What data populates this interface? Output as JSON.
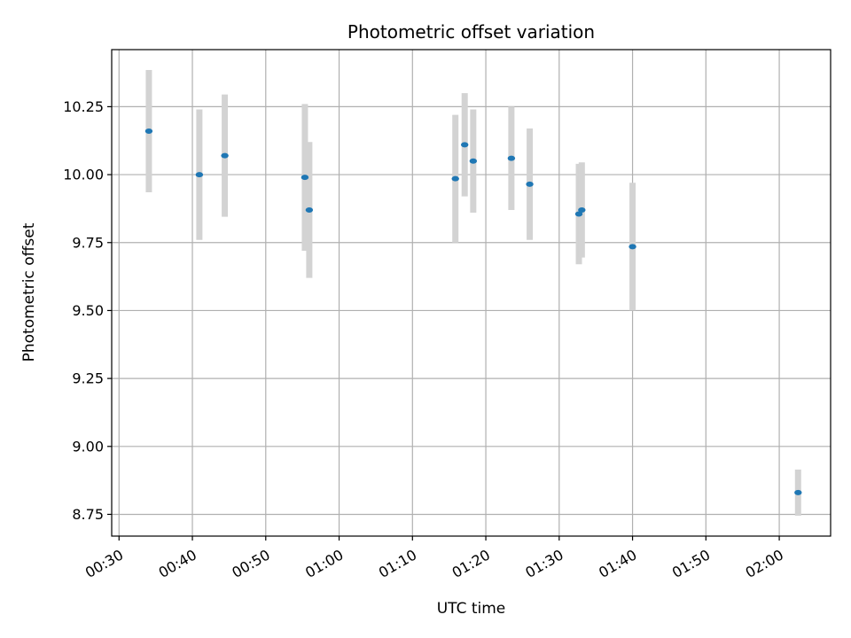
{
  "chart_data": {
    "type": "scatter",
    "title": "Photometric offset variation",
    "xlabel": "UTC time",
    "ylabel": "Photometric offset",
    "grid": true,
    "xlim": [
      "00:29",
      "02:07"
    ],
    "ylim": [
      8.67,
      10.46
    ],
    "x_ticks": [
      "00:30",
      "00:40",
      "00:50",
      "01:00",
      "01:10",
      "01:20",
      "01:30",
      "01:40",
      "01:50",
      "02:00"
    ],
    "y_ticks": [
      "8.75",
      "9.00",
      "9.25",
      "9.50",
      "9.75",
      "10.00",
      "10.25"
    ],
    "colors": {
      "marker": "#1f77b4",
      "error_bar": "#d3d3d3",
      "grid": "#b0b0b0"
    },
    "series": [
      {
        "points": [
          {
            "time": "00:34:04",
            "y": 10.16,
            "yerr": 0.225
          },
          {
            "time": "00:40:57",
            "y": 10.0,
            "yerr": 0.24
          },
          {
            "time": "00:44:25",
            "y": 10.07,
            "yerr": 0.225
          },
          {
            "time": "00:55:20",
            "y": 9.99,
            "yerr": 0.27
          },
          {
            "time": "00:55:56",
            "y": 9.87,
            "yerr": 0.25
          },
          {
            "time": "01:15:51",
            "y": 9.985,
            "yerr": 0.235
          },
          {
            "time": "01:17:07",
            "y": 10.11,
            "yerr": 0.19
          },
          {
            "time": "01:18:17",
            "y": 10.05,
            "yerr": 0.19
          },
          {
            "time": "01:23:29",
            "y": 10.06,
            "yerr": 0.19
          },
          {
            "time": "01:25:59",
            "y": 9.965,
            "yerr": 0.205
          },
          {
            "time": "01:32:41",
            "y": 9.855,
            "yerr": 0.185
          },
          {
            "time": "01:33:05",
            "y": 9.87,
            "yerr": 0.175
          },
          {
            "time": "01:40:00",
            "y": 9.735,
            "yerr": 0.235
          },
          {
            "time": "02:02:34",
            "y": 8.83,
            "yerr": 0.085
          }
        ]
      }
    ]
  }
}
